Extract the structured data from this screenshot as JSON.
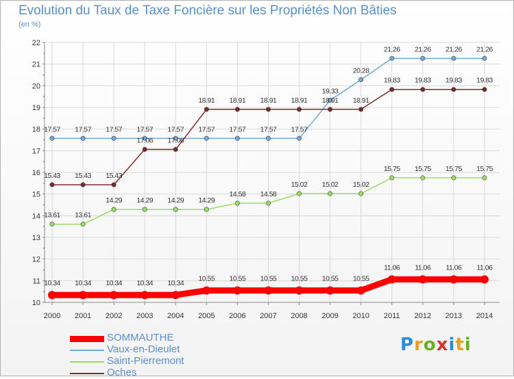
{
  "header": {
    "title": "Evolution du Taux de Taxe Foncière sur les Propriétés Non Bâties",
    "unit": "(en %)"
  },
  "logo": {
    "text": "Proxiti",
    "colors": [
      "#2a8fd8",
      "#e8a020",
      "#6ab020",
      "#d8302a",
      "#2a8fd8",
      "#e8a020",
      "#6ab020"
    ]
  },
  "chart_data": {
    "type": "line",
    "title": "Evolution du Taux de Taxe Foncière sur les Propriétés Non Bâties",
    "ylabel": "(en %)",
    "xlabel": "",
    "x": [
      "2000",
      "2001",
      "2002",
      "2003",
      "2004",
      "2005",
      "2006",
      "2007",
      "2008",
      "2009",
      "2010",
      "2011",
      "2012",
      "2013",
      "2014"
    ],
    "ylim": [
      10,
      22
    ],
    "yticks": [
      10,
      11,
      12,
      13,
      14,
      15,
      16,
      17,
      18,
      19,
      20,
      21,
      22
    ],
    "grid": true,
    "legend": "bottom-left",
    "series": [
      {
        "name": "SOMMAUTHE",
        "color": "#ff0000",
        "width": "thick",
        "values": [
          10.34,
          10.34,
          10.34,
          10.34,
          10.34,
          10.55,
          10.55,
          10.55,
          10.55,
          10.55,
          10.55,
          11.06,
          11.06,
          11.06,
          11.06
        ],
        "labels": [
          "10.34",
          "10.34",
          "10.34",
          "10.34",
          "10.34",
          "10.55",
          "10.55",
          "10.55",
          "10.55",
          "10.55",
          "10.55",
          "11.06",
          "11.06",
          "11.06",
          "11.06"
        ]
      },
      {
        "name": "Vaux-en-Dieulet",
        "color": "#6fa8dc",
        "width": "thin",
        "values": [
          17.57,
          17.57,
          17.57,
          17.57,
          17.57,
          17.57,
          17.57,
          17.57,
          17.57,
          19.33,
          20.28,
          21.26,
          21.26,
          21.26,
          21.26
        ],
        "labels": [
          "17.57",
          "17.57",
          "17.57",
          "17.57",
          "17.57",
          "17.57",
          "17.57",
          "17.57",
          "17.57",
          "19.33",
          "20.28",
          "21.26",
          "21.26",
          "21.26",
          "21.26"
        ]
      },
      {
        "name": "Saint-Pierremont",
        "color": "#99dd66",
        "width": "thin",
        "values": [
          13.61,
          13.61,
          14.29,
          14.29,
          14.29,
          14.29,
          14.58,
          14.58,
          15.02,
          15.02,
          15.02,
          15.75,
          15.75,
          15.75,
          15.75
        ],
        "labels": [
          "13.61",
          "13.61",
          "14.29",
          "14.29",
          "14.29",
          "14.29",
          "14.58",
          "14.58",
          "15.02",
          "15.02",
          "15.02",
          "15.75",
          "15.75",
          "15.75",
          "15.75"
        ]
      },
      {
        "name": "Oches",
        "color": "#7a2a2a",
        "width": "thin",
        "values": [
          15.43,
          15.43,
          15.43,
          17.06,
          17.06,
          18.91,
          18.91,
          18.91,
          18.91,
          18.91,
          18.91,
          19.83,
          19.83,
          19.83,
          19.83
        ],
        "labels": [
          "15.43",
          "15.43",
          "15.43",
          "17.06",
          "17.06",
          "18.91",
          "18.91",
          "18.91",
          "18.91",
          "18.91",
          "18.91",
          "19.83",
          "19.83",
          "19.83",
          "19.83"
        ]
      }
    ]
  }
}
